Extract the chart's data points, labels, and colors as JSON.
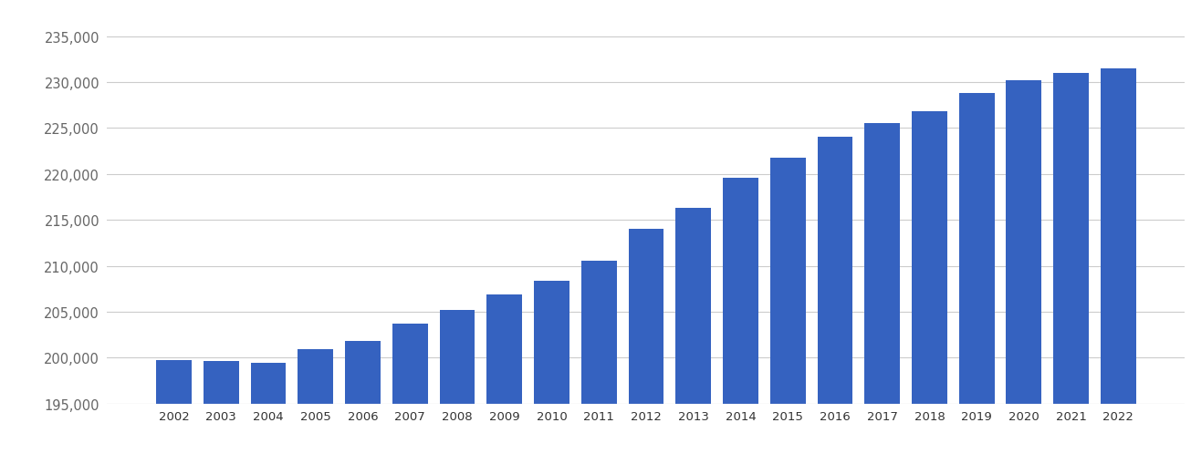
{
  "years": [
    2002,
    2003,
    2004,
    2005,
    2006,
    2007,
    2008,
    2009,
    2010,
    2011,
    2012,
    2013,
    2014,
    2015,
    2016,
    2017,
    2018,
    2019,
    2020,
    2021,
    2022
  ],
  "values": [
    199700,
    199600,
    199400,
    200900,
    201800,
    203700,
    205200,
    206900,
    208400,
    210500,
    214000,
    216300,
    219600,
    221800,
    224000,
    225500,
    226800,
    228800,
    230200,
    231000,
    231500
  ],
  "bar_color": "#3562c0",
  "background_color": "#ffffff",
  "grid_color": "#cccccc",
  "ylim_min": 195000,
  "ylim_max": 237500,
  "ytick_values": [
    195000,
    200000,
    205000,
    210000,
    215000,
    220000,
    225000,
    230000,
    235000
  ],
  "figure_width": 13.05,
  "figure_height": 5.1,
  "dpi": 100
}
